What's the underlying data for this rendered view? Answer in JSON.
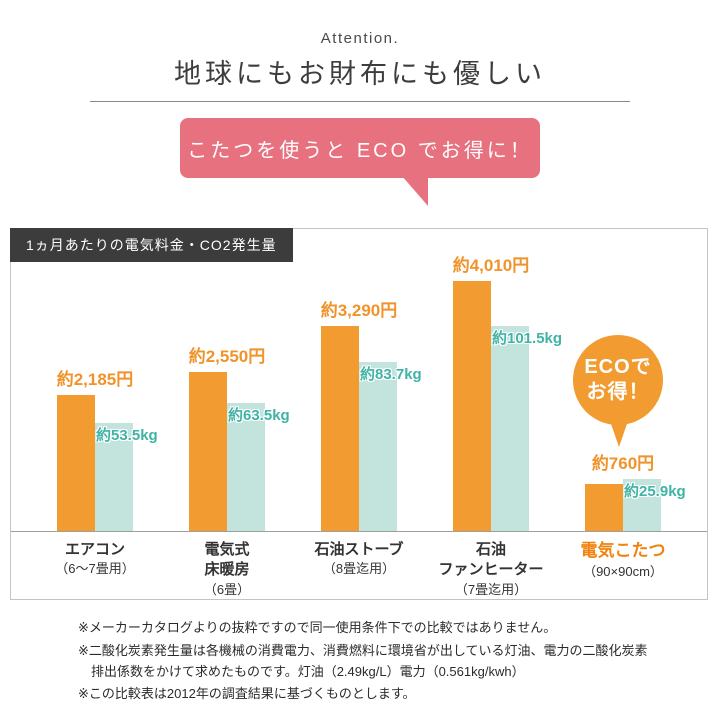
{
  "header": {
    "attention": "Attention.",
    "title": "地球にもお財布にも優しい"
  },
  "bubble": {
    "text": "こたつを使うと ECO でお得に！"
  },
  "chart": {
    "title": "1ヵ月あたりの電気料金・CO2発生量",
    "badge": {
      "line1": "ECOで",
      "line2": "お得！"
    },
    "accent_orange": "#F29B30",
    "accent_teal": "#C3E4DD",
    "accent_pink": "#E8717F"
  },
  "chart_data": {
    "type": "bar",
    "title": "1ヵ月あたりの電気料金・CO2発生量",
    "categories": [
      {
        "lines": [
          "エアコン",
          "（6〜7畳用）"
        ]
      },
      {
        "lines": [
          "電気式",
          "床暖房",
          "（6畳）"
        ]
      },
      {
        "lines": [
          "石油ストーブ",
          "（8畳迄用）"
        ]
      },
      {
        "lines": [
          "石油",
          "ファンヒーター",
          "（7畳迄用）"
        ]
      },
      {
        "lines": [
          "電気こたつ",
          "（90×90cm）"
        ],
        "highlight": true
      }
    ],
    "series": [
      {
        "name": "電気料金",
        "unit": "円",
        "color": "#F29B30",
        "values": [
          2185,
          2550,
          3290,
          4010,
          760
        ],
        "labels": [
          "約2,185円",
          "約2,550円",
          "約3,290円",
          "約4,010円",
          "約760円"
        ]
      },
      {
        "name": "CO2発生量",
        "unit": "kg",
        "color": "#C3E4DD",
        "values": [
          53.5,
          63.5,
          83.7,
          101.5,
          25.9
        ],
        "labels": [
          "約53.5kg",
          "約63.5kg",
          "約83.7kg",
          "約101.5kg",
          "約25.9kg"
        ]
      }
    ],
    "legend_position": "none",
    "grid": false
  },
  "footnotes": [
    "※メーカーカタログよりの抜粋ですので同一使用条件下での比較ではありません。",
    "※二酸化炭素発生量は各機械の消費電力、消費燃料に環境省が出している灯油、電力の二酸化炭素排出係数をかけて求めたものです。灯油（2.49kg/L）電力（0.561kg/kwh）",
    "※この比較表は2012年の調査結果に基づくものとします。"
  ]
}
